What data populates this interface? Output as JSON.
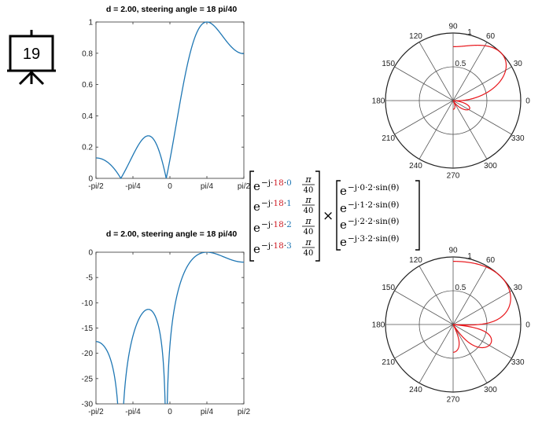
{
  "badge": {
    "number": "19"
  },
  "charts": [
    {
      "id": "linear",
      "type": "line",
      "title": "d = 2.00, steering angle  = 18 pi/40",
      "x_ticks": [
        "-pi/2",
        "-pi/4",
        "0",
        "pi/4",
        "pi/2"
      ],
      "y_ticks": [
        "0",
        "0.2",
        "0.4",
        "0.6",
        "0.8",
        "1"
      ],
      "ylim": [
        0,
        1
      ],
      "xlim": [
        -1.5708,
        1.5708
      ],
      "color": "#1f77b4"
    },
    {
      "id": "db",
      "type": "line",
      "title": "d = 2.00, steering angle  = 18 pi/40",
      "x_ticks": [
        "-pi/2",
        "-pi/4",
        "0",
        "pi/4",
        "pi/2"
      ],
      "y_ticks": [
        "0",
        "-5",
        "-10",
        "-15",
        "-20",
        "-25",
        "-30"
      ],
      "ylim": [
        -30,
        0
      ],
      "xlim": [
        -1.5708,
        1.5708
      ],
      "color": "#1f77b4"
    }
  ],
  "chart_data": {
    "type": "line",
    "model": {
      "elements": 4,
      "d": 2,
      "steering_multiplier": 18,
      "steering_divisor": 40
    },
    "angle_labels": [
      "0",
      "30",
      "60",
      "90",
      "120",
      "150",
      "180",
      "210",
      "240",
      "270",
      "300",
      "330"
    ],
    "radial_labels": [
      "0.5",
      "1"
    ],
    "curve_color": "#e8161b"
  },
  "equation": {
    "left": [
      {
        "n": "0"
      },
      {
        "n": "1"
      },
      {
        "n": "2"
      },
      {
        "n": "3"
      }
    ],
    "right": [
      "0",
      "1",
      "2",
      "3"
    ],
    "e": "e",
    "minus_j": "−j",
    "dot": "·",
    "k": "18",
    "pi": "π",
    "denom": "40",
    "times": "×",
    "d": "2",
    "sin": "sin(θ)"
  }
}
